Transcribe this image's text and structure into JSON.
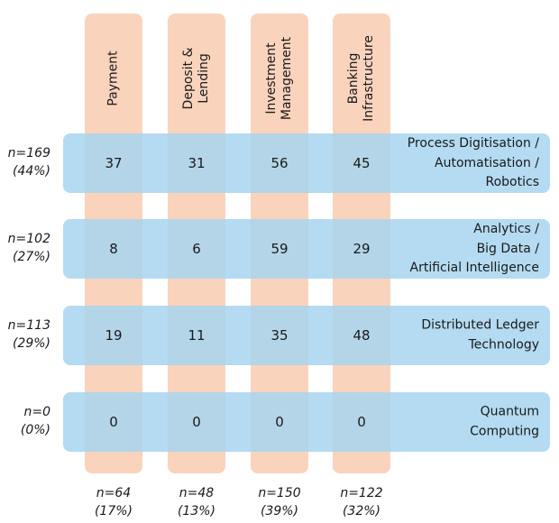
{
  "colors": {
    "column": "#f9d3bc",
    "row": "#a7d5ef"
  },
  "columns": [
    {
      "label": "Payment",
      "n": "n=64",
      "pct": "(17%)"
    },
    {
      "label": "Deposit &\nLending",
      "n": "n=48",
      "pct": "(13%)"
    },
    {
      "label": "Investment\nManagement",
      "n": "n=150",
      "pct": "(39%)"
    },
    {
      "label": "Banking\nInfrastructure",
      "n": "n=122",
      "pct": "(32%)"
    }
  ],
  "rows": [
    {
      "label": "Process Digitisation /\nAutomatisation /\nRobotics",
      "n": "n=169",
      "pct": "(44%)",
      "values": [
        "37",
        "31",
        "56",
        "45"
      ]
    },
    {
      "label": "Analytics /\nBig Data /\nArtificial Intelligence",
      "n": "n=102",
      "pct": "(27%)",
      "values": [
        "8",
        "6",
        "59",
        "29"
      ]
    },
    {
      "label": "Distributed Ledger\nTechnology",
      "n": "n=113",
      "pct": "(29%)",
      "values": [
        "19",
        "11",
        "35",
        "48"
      ]
    },
    {
      "label": "Quantum\nComputing",
      "n": "n=0",
      "pct": "(0%)",
      "values": [
        "0",
        "0",
        "0",
        "0"
      ]
    }
  ]
}
